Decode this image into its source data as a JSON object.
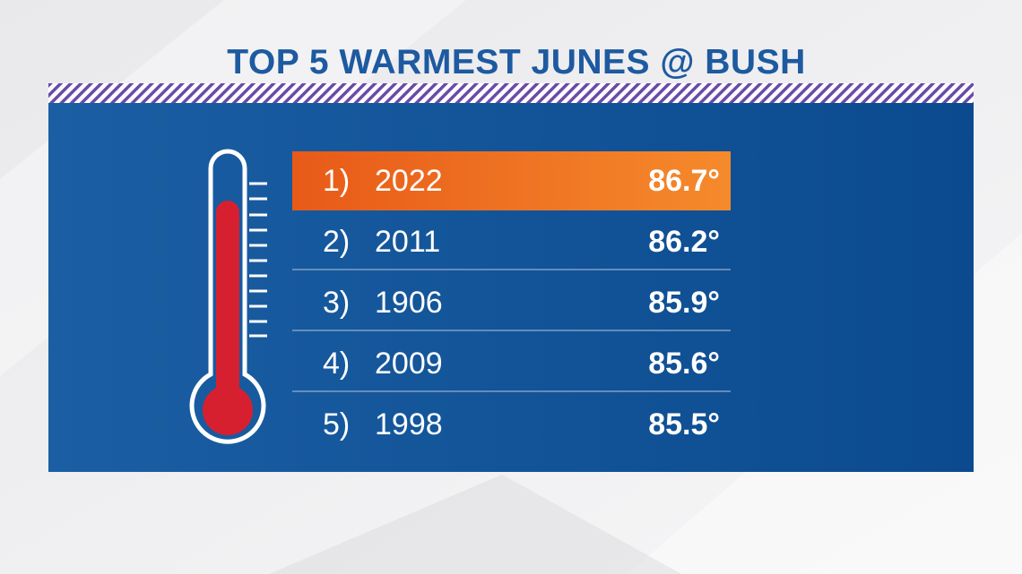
{
  "title": "TOP 5 WARMEST JUNES @ BUSH",
  "table": {
    "rows": [
      [
        "1)",
        "2022",
        "86.7°"
      ],
      [
        "2)",
        "2011",
        "86.2°"
      ],
      [
        "3)",
        "1906",
        "85.9°"
      ],
      [
        "4)",
        "2009",
        "85.6°"
      ],
      [
        "5)",
        "1998",
        "85.5°"
      ]
    ]
  }
}
